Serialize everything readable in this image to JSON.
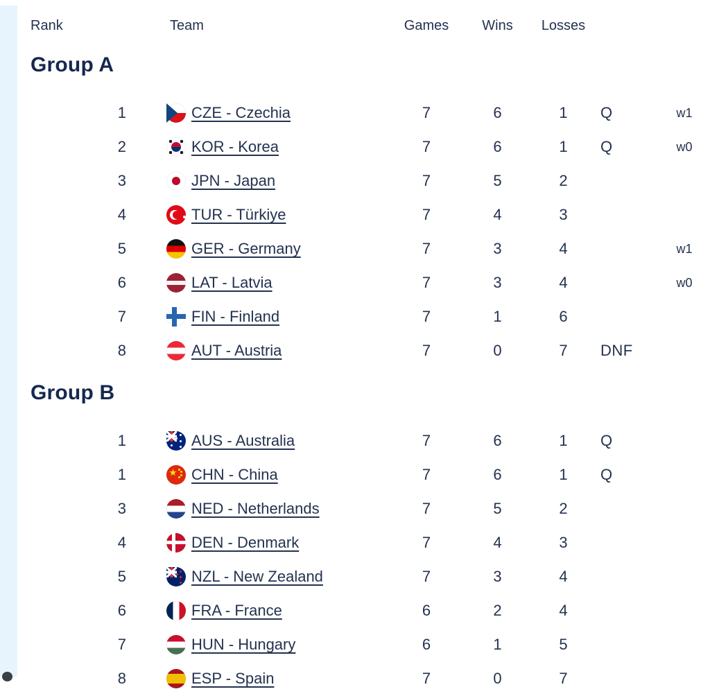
{
  "colors": {
    "accent_strip": "#e8f4fd",
    "text": "#23324f",
    "heading": "#16284e"
  },
  "table": {
    "headers": {
      "rank": "Rank",
      "team": "Team",
      "games": "Games",
      "wins": "Wins",
      "losses": "Losses"
    }
  },
  "groups": [
    {
      "name": "Group A",
      "rows": [
        {
          "rank": "1",
          "flag": "cze",
          "team": "CZE - Czechia",
          "games": "7",
          "wins": "6",
          "losses": "1",
          "qualified": "Q",
          "streak": "w1"
        },
        {
          "rank": "2",
          "flag": "kor",
          "team": "KOR - Korea",
          "games": "7",
          "wins": "6",
          "losses": "1",
          "qualified": "Q",
          "streak": "w0"
        },
        {
          "rank": "3",
          "flag": "jpn",
          "team": "JPN - Japan",
          "games": "7",
          "wins": "5",
          "losses": "2",
          "qualified": "",
          "streak": ""
        },
        {
          "rank": "4",
          "flag": "tur",
          "team": "TUR - Türkiye",
          "games": "7",
          "wins": "4",
          "losses": "3",
          "qualified": "",
          "streak": ""
        },
        {
          "rank": "5",
          "flag": "ger",
          "team": "GER - Germany",
          "games": "7",
          "wins": "3",
          "losses": "4",
          "qualified": "",
          "streak": "w1"
        },
        {
          "rank": "6",
          "flag": "lat",
          "team": "LAT - Latvia",
          "games": "7",
          "wins": "3",
          "losses": "4",
          "qualified": "",
          "streak": "w0"
        },
        {
          "rank": "7",
          "flag": "fin",
          "team": "FIN - Finland",
          "games": "7",
          "wins": "1",
          "losses": "6",
          "qualified": "",
          "streak": ""
        },
        {
          "rank": "8",
          "flag": "aut",
          "team": "AUT - Austria",
          "games": "7",
          "wins": "0",
          "losses": "7",
          "qualified": "DNF",
          "streak": ""
        }
      ]
    },
    {
      "name": "Group B",
      "rows": [
        {
          "rank": "1",
          "flag": "aus",
          "team": "AUS - Australia",
          "games": "7",
          "wins": "6",
          "losses": "1",
          "qualified": "Q",
          "streak": ""
        },
        {
          "rank": "1",
          "flag": "chn",
          "team": "CHN - China",
          "games": "7",
          "wins": "6",
          "losses": "1",
          "qualified": "Q",
          "streak": ""
        },
        {
          "rank": "3",
          "flag": "ned",
          "team": "NED - Netherlands",
          "games": "7",
          "wins": "5",
          "losses": "2",
          "qualified": "",
          "streak": ""
        },
        {
          "rank": "4",
          "flag": "den",
          "team": "DEN - Denmark",
          "games": "7",
          "wins": "4",
          "losses": "3",
          "qualified": "",
          "streak": ""
        },
        {
          "rank": "5",
          "flag": "nzl",
          "team": "NZL - New Zealand",
          "games": "7",
          "wins": "3",
          "losses": "4",
          "qualified": "",
          "streak": ""
        },
        {
          "rank": "6",
          "flag": "fra",
          "team": "FRA - France",
          "games": "6",
          "wins": "2",
          "losses": "4",
          "qualified": "",
          "streak": ""
        },
        {
          "rank": "7",
          "flag": "hun",
          "team": "HUN - Hungary",
          "games": "6",
          "wins": "1",
          "losses": "5",
          "qualified": "",
          "streak": ""
        },
        {
          "rank": "8",
          "flag": "esp",
          "team": "ESP - Spain",
          "games": "7",
          "wins": "0",
          "losses": "7",
          "qualified": "",
          "streak": ""
        }
      ]
    }
  ]
}
